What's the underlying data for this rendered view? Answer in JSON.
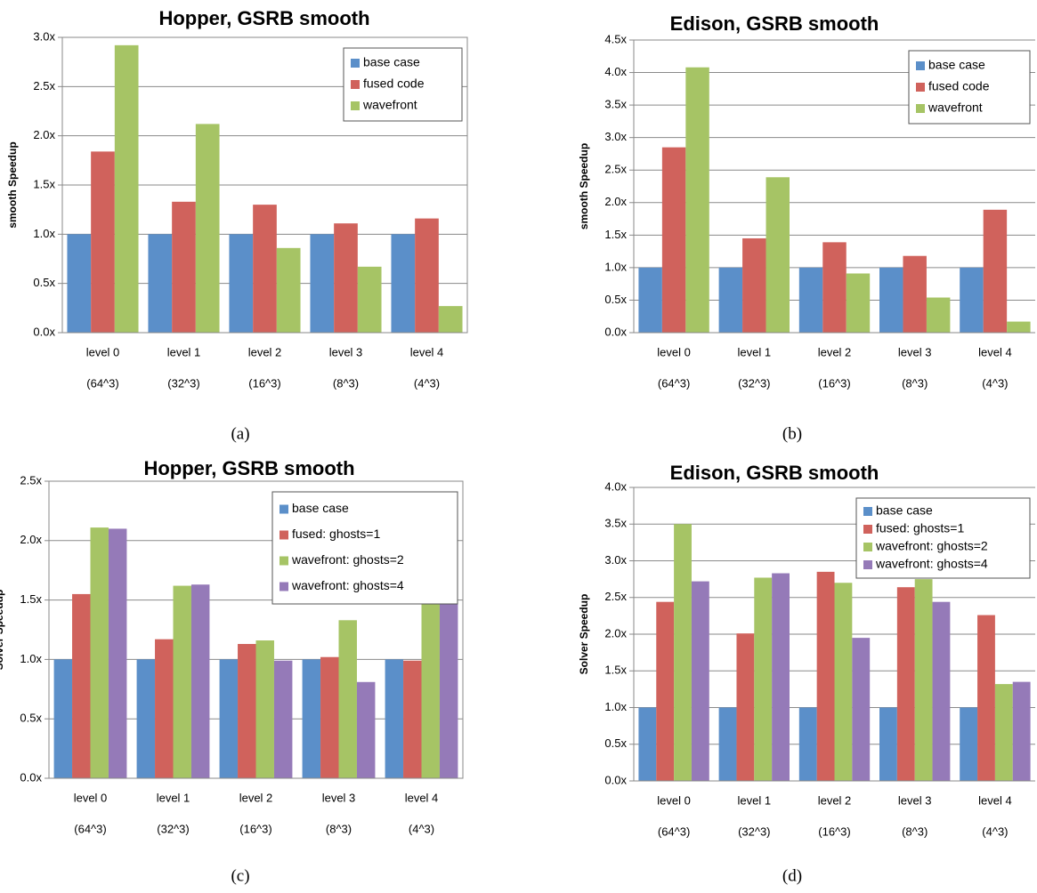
{
  "chart_data": [
    {
      "type": "bar",
      "title": "Hopper, GSRB smooth",
      "ylabel": "smooth Speedup",
      "caption": "(a)",
      "categories": [
        "level 0",
        "level 1",
        "level 2",
        "level 3",
        "level 4"
      ],
      "category_sublabels": [
        "(64^3)",
        "(32^3)",
        "(16^3)",
        "(8^3)",
        "(4^3)"
      ],
      "series": [
        {
          "name": "base case",
          "color": "#5b8fc9",
          "values": [
            1,
            1,
            1,
            1,
            1
          ]
        },
        {
          "name": "fused code",
          "color": "#d0625c",
          "values": [
            1.84,
            1.33,
            1.3,
            1.11,
            1.16
          ]
        },
        {
          "name": "wavefront",
          "color": "#a6c465",
          "values": [
            2.92,
            2.12,
            0.86,
            0.67,
            0.27
          ]
        }
      ],
      "ylim": [
        0,
        3
      ],
      "yticks": [
        {
          "value": 0,
          "label": "0.0x"
        },
        {
          "value": 0.5,
          "label": "0.5x"
        },
        {
          "value": 1,
          "label": "1.0x"
        },
        {
          "value": 1.5,
          "label": "1.5x"
        },
        {
          "value": 2,
          "label": "2.0x"
        },
        {
          "value": 2.5,
          "label": "2.5x"
        },
        {
          "value": 3,
          "label": "3.0x"
        }
      ],
      "grid": true,
      "legend": "upper right"
    },
    {
      "type": "bar",
      "title": "Edison, GSRB smooth",
      "ylabel": "smooth Speedup",
      "caption": "(b)",
      "categories": [
        "level 0",
        "level 1",
        "level 2",
        "level 3",
        "level 4"
      ],
      "category_sublabels": [
        "(64^3)",
        "(32^3)",
        "(16^3)",
        "(8^3)",
        "(4^3)"
      ],
      "series": [
        {
          "name": "base case",
          "color": "#5b8fc9",
          "values": [
            1,
            1,
            1,
            1,
            1
          ]
        },
        {
          "name": "fused code",
          "color": "#d0625c",
          "values": [
            2.85,
            1.45,
            1.39,
            1.18,
            1.89
          ]
        },
        {
          "name": "wavefront",
          "color": "#a6c465",
          "values": [
            4.08,
            2.39,
            0.91,
            0.54,
            0.17
          ]
        }
      ],
      "ylim": [
        0,
        4.5
      ],
      "yticks": [
        {
          "value": 0,
          "label": "0.0x"
        },
        {
          "value": 0.5,
          "label": "0.5x"
        },
        {
          "value": 1,
          "label": "1.0x"
        },
        {
          "value": 1.5,
          "label": "1.5x"
        },
        {
          "value": 2,
          "label": "2.0x"
        },
        {
          "value": 2.5,
          "label": "2.5x"
        },
        {
          "value": 3,
          "label": "3.0x"
        },
        {
          "value": 3.5,
          "label": "3.5x"
        },
        {
          "value": 4,
          "label": "4.0x"
        },
        {
          "value": 4.5,
          "label": "4.5x"
        }
      ],
      "grid": true,
      "legend": "upper right"
    },
    {
      "type": "bar",
      "title": "Hopper, GSRB smooth",
      "ylabel": "Solver Speedup",
      "caption": "(c)",
      "categories": [
        "level 0",
        "level 1",
        "level 2",
        "level 3",
        "level 4"
      ],
      "category_sublabels": [
        "(64^3)",
        "(32^3)",
        "(16^3)",
        "(8^3)",
        "(4^3)"
      ],
      "series": [
        {
          "name": "base case",
          "color": "#5b8fc9",
          "values": [
            1,
            1,
            1,
            1,
            1
          ]
        },
        {
          "name": "fused: ghosts=1",
          "color": "#d0625c",
          "values": [
            1.55,
            1.17,
            1.13,
            1.02,
            0.99
          ]
        },
        {
          "name": "wavefront: ghosts=2",
          "color": "#a6c465",
          "values": [
            2.11,
            1.62,
            1.16,
            1.33,
            1.51
          ]
        },
        {
          "name": "wavefront: ghosts=4",
          "color": "#957ab8",
          "values": [
            2.1,
            1.63,
            0.99,
            0.81,
            1.71
          ]
        }
      ],
      "ylim": [
        0,
        2.5
      ],
      "yticks": [
        {
          "value": 0,
          "label": "0.0x"
        },
        {
          "value": 0.5,
          "label": "0.5x"
        },
        {
          "value": 1,
          "label": "1.0x"
        },
        {
          "value": 1.5,
          "label": "1.5x"
        },
        {
          "value": 2,
          "label": "2.0x"
        },
        {
          "value": 2.5,
          "label": "2.5x"
        }
      ],
      "grid": true,
      "legend": "upper right"
    },
    {
      "type": "bar",
      "title": "Edison, GSRB smooth",
      "ylabel": "Solver Speedup",
      "caption": "(d)",
      "categories": [
        "level 0",
        "level 1",
        "level 2",
        "level 3",
        "level 4"
      ],
      "category_sublabels": [
        "(64^3)",
        "(32^3)",
        "(16^3)",
        "(8^3)",
        "(4^3)"
      ],
      "series": [
        {
          "name": "base case",
          "color": "#5b8fc9",
          "values": [
            1,
            1,
            1,
            1,
            1
          ]
        },
        {
          "name": "fused: ghosts=1",
          "color": "#d0625c",
          "values": [
            2.44,
            2.01,
            2.85,
            2.64,
            2.26
          ]
        },
        {
          "name": "wavefront: ghosts=2",
          "color": "#a6c465",
          "values": [
            3.5,
            2.77,
            2.7,
            2.75,
            1.32
          ]
        },
        {
          "name": "wavefront: ghosts=4",
          "color": "#957ab8",
          "values": [
            2.72,
            2.83,
            1.95,
            2.44,
            1.35
          ]
        }
      ],
      "ylim": [
        0,
        4
      ],
      "yticks": [
        {
          "value": 0,
          "label": "0.0x"
        },
        {
          "value": 0.5,
          "label": "0.5x"
        },
        {
          "value": 1,
          "label": "1.0x"
        },
        {
          "value": 1.5,
          "label": "1.5x"
        },
        {
          "value": 2,
          "label": "2.0x"
        },
        {
          "value": 2.5,
          "label": "2.5x"
        },
        {
          "value": 3,
          "label": "3.0x"
        },
        {
          "value": 3.5,
          "label": "3.5x"
        },
        {
          "value": 4,
          "label": "4.0x"
        }
      ],
      "grid": true,
      "legend": "upper right"
    }
  ]
}
